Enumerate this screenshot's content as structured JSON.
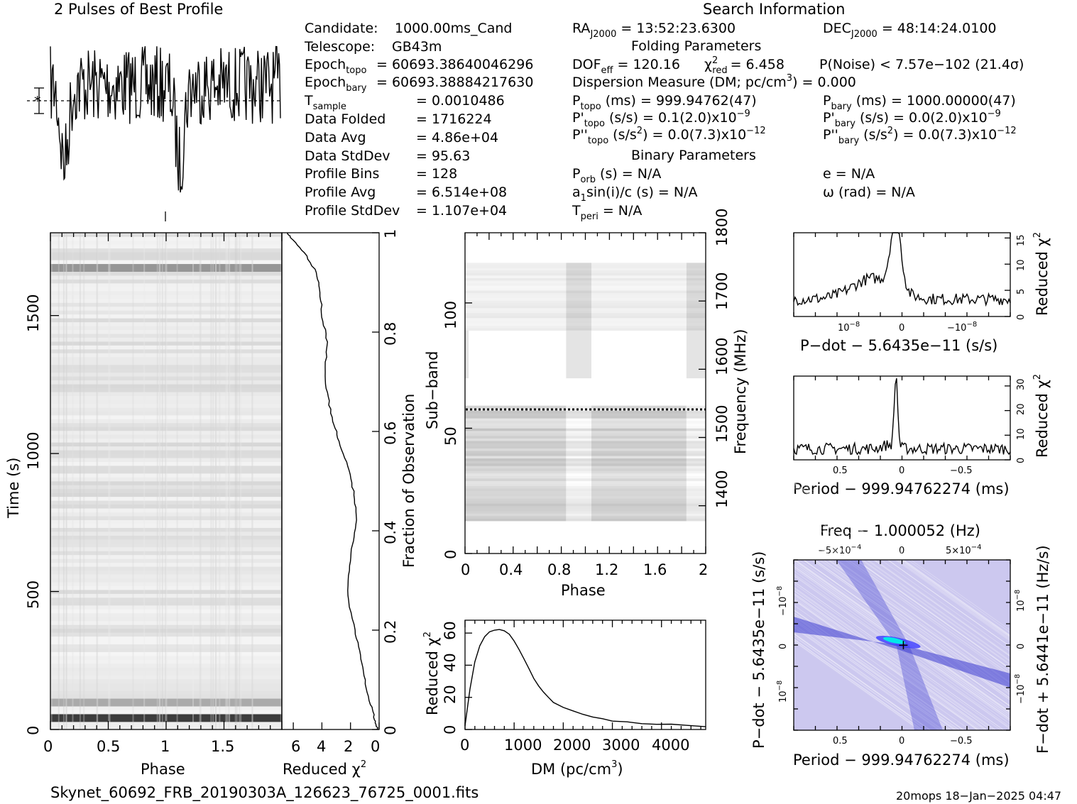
{
  "header": {
    "left_title": "2 Pulses of Best Profile",
    "right_title": "Search Information"
  },
  "info": {
    "candidate_label": "Candidate:",
    "candidate": "1000.00ms_Cand",
    "telescope_label": "Telescope:",
    "telescope": "GB43m",
    "epoch_topo_label": "Epoch",
    "epoch_topo_sub": "topo",
    "epoch_topo": "= 60693.38640046296",
    "epoch_bary_label": "Epoch",
    "epoch_bary_sub": "bary",
    "epoch_bary": "= 60693.38884217630",
    "tsample_label": "T",
    "tsample_sub": "sample",
    "tsample": "=  0.0010486",
    "data_folded_label": "Data Folded",
    "data_folded": "=  1716224",
    "data_avg_label": "Data Avg",
    "data_avg": "=  4.86e+04",
    "data_stddev_label": "Data StdDev",
    "data_stddev": "=  95.63",
    "profile_bins_label": "Profile Bins",
    "profile_bins": "=  128",
    "profile_avg_label": "Profile Avg",
    "profile_avg": "=  6.514e+08",
    "profile_stddev_label": "Profile StdDev",
    "profile_stddev": "=  1.107e+04"
  },
  "search": {
    "ra_label": "RA",
    "ra_sub": "J2000",
    "ra": "= 13:52:23.6300",
    "dec_label": "DEC",
    "dec_sub": "J2000",
    "dec": "= 48:14:24.0100",
    "folding_title": "Folding Parameters",
    "dof_label": "DOF",
    "dof_sub": "eff",
    "dof": "= 120.16",
    "chi_label": "χ",
    "chi_sup": "2",
    "chi_sub": "red",
    "chi": "= 6.458",
    "pnoise": "P(Noise) < 7.57e−102  (21.4σ)",
    "dm_line": "Dispersion Measure (DM; pc/cm",
    "dm_sup": "3",
    "dm_value": ") = 0.000",
    "ptopo_label": "P",
    "ptopo_sub": "topo",
    "ptopo": "(ms) =  999.94762(47)",
    "pbary_label": "P",
    "pbary_sub": "bary",
    "pbary": "(ms) =  1000.00000(47)",
    "pdtopo_label": "P'",
    "pdtopo_sub": "topo",
    "pdtopo": "(s/s) =  0.1(2.0)x10",
    "pdtopo_exp": "−9",
    "pdbary_label": "P'",
    "pdbary_sub": "bary",
    "pdbary": "(s/s) = 0.0(2.0)x10",
    "pdbary_exp": "−9",
    "pddtopo_label": "P''",
    "pddtopo_sub": "topo",
    "pddtopo": "(s/s",
    "pddtopo_sup": "2",
    "pddtopo_val": ") = 0.0(7.3)x10",
    "pddtopo_exp": "−12",
    "pddbary_label": "P''",
    "pddbary_sub": "bary",
    "pddbary": "(s/s",
    "pddbary_sup": "2",
    "pddbary_val": ") = 0.0(7.3)x10",
    "pddbary_exp": "−12",
    "binary_title": "Binary Parameters",
    "porb_label": "P",
    "porb_sub": "orb",
    "porb": "(s) = N/A",
    "e": "e = N/A",
    "asini_label": "a",
    "asini_sub": "1",
    "asini": "sin(i)/c (s) = N/A",
    "omega": "ω (rad) = N/A",
    "tperi_label": "T",
    "tperi_sub": "peri",
    "tperi": "= N/A"
  },
  "footer": {
    "filename": "Skynet_60692_FRB_20190303A_126623_76725_0001.fits",
    "stamp": "20mops 18−Jan−2025 04:47"
  },
  "chart_data": [
    {
      "name": "profile",
      "type": "line",
      "title": "2 Pulses of Best Profile",
      "x": "phase 0–2 (two pulses)",
      "description_values": "noisy profile with dips near phase 0.15 and 1.15"
    },
    {
      "name": "time-phase",
      "type": "heatmap",
      "xlabel": "Phase",
      "ylabel": "Time (s)",
      "xticks": [
        "0",
        "0.5",
        "1",
        "1.5"
      ],
      "yticks": [
        "0",
        "500",
        "1000",
        "1500"
      ],
      "xlim": [
        0,
        2
      ],
      "ylim": [
        0,
        1800
      ]
    },
    {
      "name": "reduced-chi2-vs-time",
      "type": "line",
      "xlabel": "Reduced χ",
      "xlabel_sup": "2",
      "ylabel": "Fraction of Observation",
      "xticks": [
        "6",
        "4",
        "2",
        "0"
      ],
      "yticks": [
        "0",
        "0.2",
        "0.4",
        "0.6",
        "0.8",
        "1"
      ],
      "xlim": [
        6.8,
        0
      ],
      "ylim": [
        0,
        1
      ],
      "points": [
        [
          0.1,
          0
        ],
        [
          0.3,
          0.02
        ],
        [
          0.6,
          0.05
        ],
        [
          1.0,
          0.1
        ],
        [
          1.3,
          0.15
        ],
        [
          1.7,
          0.2
        ],
        [
          2.2,
          0.27
        ],
        [
          2.1,
          0.33
        ],
        [
          1.8,
          0.38
        ],
        [
          1.6,
          0.43
        ],
        [
          1.8,
          0.48
        ],
        [
          2.2,
          0.53
        ],
        [
          2.8,
          0.58
        ],
        [
          3.2,
          0.62
        ],
        [
          3.6,
          0.67
        ],
        [
          3.8,
          0.72
        ],
        [
          3.6,
          0.78
        ],
        [
          4.0,
          0.83
        ],
        [
          4.1,
          0.88
        ],
        [
          4.4,
          0.92
        ],
        [
          5.2,
          0.96
        ],
        [
          6.2,
          0.99
        ],
        [
          6.4,
          1.0
        ]
      ]
    },
    {
      "name": "subband-phase",
      "type": "heatmap",
      "xlabel": "Phase",
      "ylabel": "Sub−band",
      "ylabel2": "Frequency (MHz)",
      "xticks": [
        "0",
        "0.4",
        "0.8",
        "1.2",
        "1.6",
        "2"
      ],
      "yticks": [
        "0",
        "50",
        "100"
      ],
      "yticks2": [
        "1400",
        "1500",
        "1600",
        "1700",
        "1800"
      ],
      "xlim": [
        0,
        2
      ],
      "ylim": [
        0,
        128
      ],
      "ylim2": [
        1330,
        1800
      ],
      "dotted_line_subband": 58
    },
    {
      "name": "dm-curve",
      "type": "line",
      "xlabel": "DM (pc/cm",
      "xlabel_sup": "3",
      "xlabel_end": ")",
      "ylabel": "Reduced χ",
      "ylabel_sup": "2",
      "xticks": [
        "0",
        "1000",
        "2000",
        "3000",
        "4000"
      ],
      "yticks": [
        "0",
        "20",
        "40",
        "60"
      ],
      "xlim": [
        0,
        4900
      ],
      "ylim": [
        0,
        68
      ],
      "points": [
        [
          0,
          2
        ],
        [
          100,
          25
        ],
        [
          200,
          42
        ],
        [
          300,
          52
        ],
        [
          400,
          58
        ],
        [
          500,
          61
        ],
        [
          600,
          62
        ],
        [
          700,
          62
        ],
        [
          800,
          61.5
        ],
        [
          900,
          59
        ],
        [
          1000,
          55
        ],
        [
          1100,
          50
        ],
        [
          1200,
          44
        ],
        [
          1300,
          38
        ],
        [
          1400,
          32
        ],
        [
          1500,
          27
        ],
        [
          1600,
          23
        ],
        [
          1700,
          20
        ],
        [
          1800,
          17
        ],
        [
          2000,
          14
        ],
        [
          2200,
          11.5
        ],
        [
          2400,
          9.5
        ],
        [
          2600,
          8
        ],
        [
          2800,
          6.5
        ],
        [
          3000,
          5.5
        ],
        [
          3300,
          4.5
        ],
        [
          3600,
          3.5
        ],
        [
          3900,
          3
        ],
        [
          4200,
          3.2
        ],
        [
          4500,
          2.5
        ],
        [
          4900,
          1.5
        ]
      ]
    },
    {
      "name": "pdot-curve",
      "type": "line",
      "xlabel": "P−dot − 5.6435e−11 (s/s)",
      "ylabel": "Reduced χ",
      "ylabel_sup": "2",
      "xticks": [
        "10",
        "0",
        "−10"
      ],
      "xtick_exp": "−8",
      "yticks": [
        "0",
        "5",
        "10",
        "15"
      ],
      "xlim": [
        1.7,
        -1.8
      ],
      "ylim": [
        0,
        16
      ],
      "peak_x": 0.05,
      "peak_y": 15
    },
    {
      "name": "period-curve",
      "type": "line",
      "xlabel": "Period − 999.94762274 (ms)",
      "ylabel": "Reduced χ",
      "ylabel_sup": "2",
      "xticks": [
        "0.5",
        "0",
        "−0.5"
      ],
      "yticks": [
        "0",
        "10",
        "20",
        "30"
      ],
      "xlim": [
        0.9,
        -0.9
      ],
      "ylim": [
        0,
        34
      ],
      "peak_x": 0.05,
      "peak_y": 31
    },
    {
      "name": "period-pdot-plane",
      "type": "heatmap",
      "title": "Freq − 1.000052 (Hz)",
      "xlabel": "Period − 999.94762274 (ms)",
      "ylabel": "P−dot − 5.6435e−11 (s/s)",
      "ylabel2": "F−dot + 5.6441e−11 (Hz/s)",
      "xticks": [
        "0.5",
        "0",
        "−0.5"
      ],
      "xticks_top": [
        "−5×10",
        "0",
        "5×10"
      ],
      "xticks_top_exp": "−4",
      "yticks": [
        "10",
        "0",
        "−10"
      ],
      "ytick_exp": "−8",
      "yticks2": [
        "−10",
        "0",
        "10"
      ],
      "ytick2_exp": "−8",
      "colors": {
        "background": "#ccc8ef",
        "band": "#3a3ad0",
        "peak": "#00e8e8",
        "marker": "#000000"
      }
    }
  ]
}
